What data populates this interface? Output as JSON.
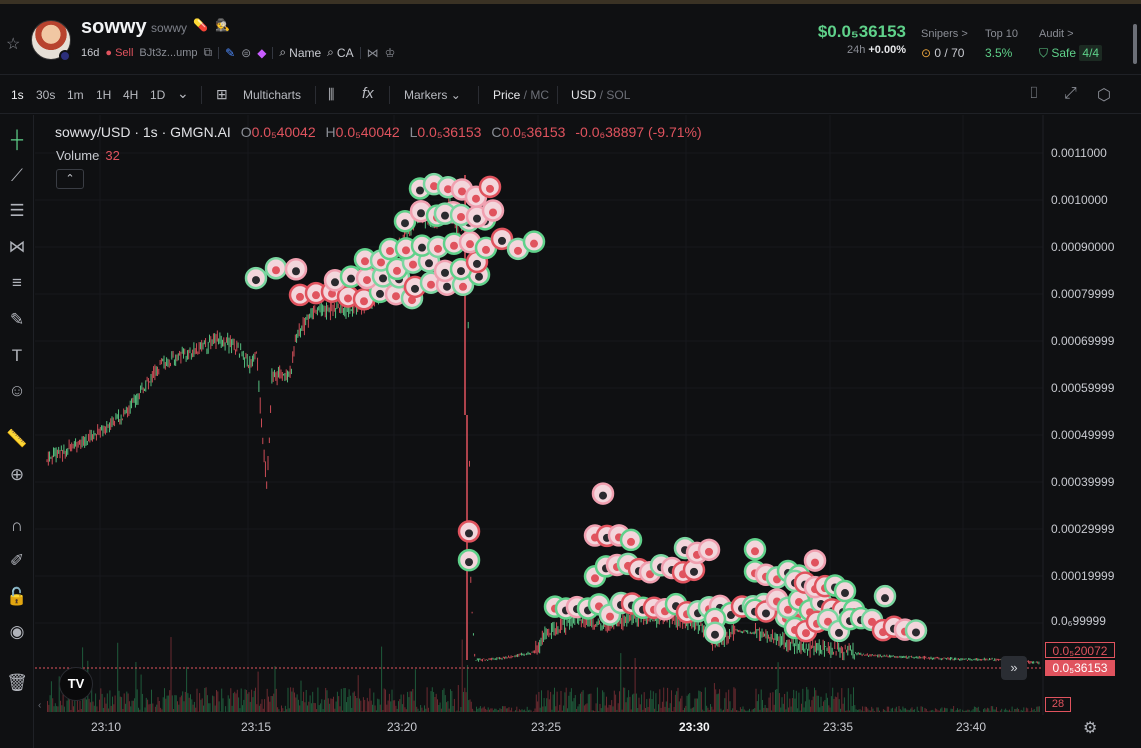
{
  "header": {
    "token_name": "sowwy",
    "token_sub": "sowwy",
    "badges": "💊 🕵",
    "age": "16d",
    "sell_label": "Sell",
    "address": "BJt3z...ump",
    "name_search": "Name",
    "ca_search": "CA",
    "price": "$0.0₅36153",
    "price_24h_label": "24h",
    "price_24h_change": "+0.00%",
    "snipers_label": "Snipers >",
    "snipers_value": "0 / 70",
    "top10_label": "Top 10",
    "top10_value": "3.5%",
    "audit_label": "Audit >",
    "audit_value": "Safe",
    "audit_count": "4/4"
  },
  "toolbar": {
    "intervals": [
      "1s",
      "30s",
      "1m",
      "1H",
      "4H",
      "1D"
    ],
    "active_interval": "1s",
    "multicharts": "Multicharts",
    "markers": "Markers",
    "price_label": "Price",
    "mc_label": "MC",
    "usd_label": "USD",
    "sol_label": "SOL"
  },
  "legend": {
    "symbol": "sowwy/USD · 1s · GMGN.AI",
    "o_label": "O",
    "o_value": "0.0₅40042",
    "h_label": "H",
    "h_value": "0.0₅40042",
    "l_label": "L",
    "l_value": "0.0₅36153",
    "c_label": "C",
    "c_value": "0.0₅36153",
    "change": "-0.0₆38897 (-9.71%)",
    "volume_label": "Volume",
    "volume_value": "32"
  },
  "axes": {
    "y_ticks": [
      "0.0011000",
      "0.0010000",
      "0.00090000",
      "0.00079999",
      "0.00069999",
      "0.00059999",
      "0.00049999",
      "0.00039999",
      "0.00029999",
      "0.00019999",
      "0.0₆99999"
    ],
    "x_ticks": [
      "23:10",
      "23:15",
      "23:20",
      "23:25",
      "23:30",
      "23:35",
      "23:40"
    ],
    "x_bold": "23:30",
    "price_tag_1": "0.0₅20072",
    "price_tag_2": "0.0₅36153",
    "volume_tag": "28",
    "logo": "TV"
  },
  "colors": {
    "up": "#5fd18a",
    "down": "#e0535e",
    "bg": "#0f1012"
  }
}
